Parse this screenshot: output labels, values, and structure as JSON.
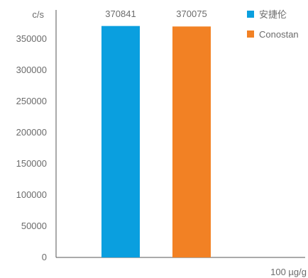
{
  "chart_data": {
    "type": "bar",
    "ylabel": "c/s",
    "xlabel": "100 µg/g",
    "ylim": [
      0,
      400000
    ],
    "yticks": [
      0,
      50000,
      100000,
      150000,
      200000,
      250000,
      300000,
      350000
    ],
    "categories": [
      "安捷伦",
      "Conostan"
    ],
    "series": [
      {
        "name": "安捷伦",
        "value": 370841,
        "label": "370841",
        "color": "#0a9fdf"
      },
      {
        "name": "Conostan",
        "value": 370075,
        "label": "370075",
        "color": "#f28124"
      }
    ],
    "legend_position": "top-right",
    "grid": false
  }
}
